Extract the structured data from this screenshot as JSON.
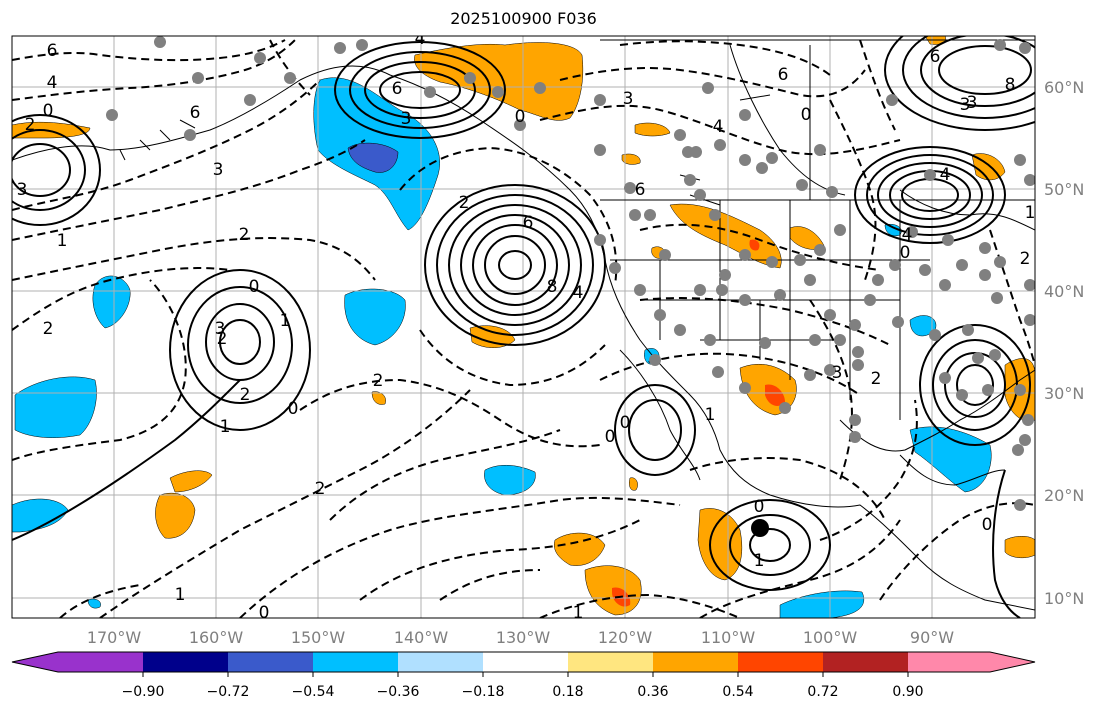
{
  "title": "2025100900 F036",
  "map": {
    "lon_ticks": [
      "170°W",
      "160°W",
      "150°W",
      "140°W",
      "130°W",
      "120°W",
      "110°W",
      "100°W",
      "90°W"
    ],
    "lat_ticks": [
      "60°N",
      "50°N",
      "40°N",
      "30°N",
      "20°N",
      "10°N"
    ],
    "contour_labels": [
      "6",
      "4",
      "0",
      "2",
      "3",
      "6",
      "6",
      "4",
      "3",
      "0",
      "2",
      "1",
      "2",
      "4",
      "6",
      "8",
      "2",
      "3",
      "2",
      "3",
      "2",
      "1",
      "0",
      "2",
      "0",
      "1",
      "0",
      "1",
      "6",
      "4",
      "0",
      "8",
      "6",
      "4",
      "3",
      "1",
      "0",
      "2",
      "6",
      "3",
      "4",
      "3",
      "0",
      "2",
      "0",
      "1",
      "2",
      "0",
      "1",
      "1",
      "3",
      "0"
    ],
    "colors": {
      "blue_fill": "#00bfff",
      "dark_blue_fill": "#3a5acb",
      "orange_fill": "#ffa500",
      "red_fill": "#ff4500",
      "grid": "#b0b0b0",
      "station_dot": "#808080",
      "marker": "#000000"
    }
  },
  "colorbar": {
    "labels": [
      "−0.90",
      "−0.72",
      "−0.54",
      "−0.36",
      "−0.18",
      "0.18",
      "0.36",
      "0.54",
      "0.72",
      "0.90"
    ],
    "colors": [
      "#9932cc",
      "#00008b",
      "#3a5acb",
      "#00bfff",
      "#b0e0ff",
      "#ffffff",
      "#ffe680",
      "#ffa500",
      "#ff4500",
      "#b22222",
      "#ff88aa"
    ]
  }
}
